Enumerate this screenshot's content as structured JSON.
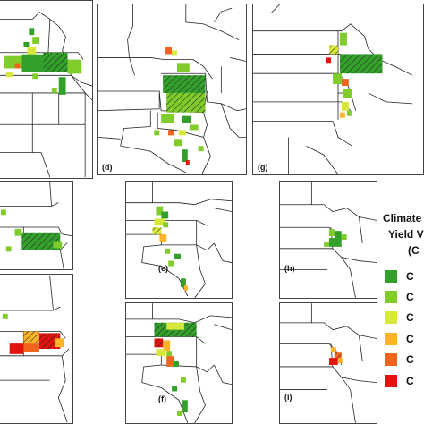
{
  "panels": {
    "d": "(d)",
    "g": "(g)",
    "e": "(e)",
    "h": "(h)",
    "f": "(f)",
    "i": "(i)"
  },
  "legend": {
    "title_line1": "Climate",
    "title_line2": "Yield V",
    "title_line3": "(C",
    "items": [
      {
        "label": "C",
        "color": "#33a02c"
      },
      {
        "label": "C",
        "color": "#7fcc2a"
      },
      {
        "label": "C",
        "color": "#d7e83a"
      },
      {
        "label": "C",
        "color": "#fdb42a"
      },
      {
        "label": "C",
        "color": "#f0641e"
      },
      {
        "label": "C",
        "color": "#e3140f"
      }
    ]
  },
  "colors": {
    "dark_green": "#33a02c",
    "light_green": "#7fcc2a",
    "yellow_green": "#d7e83a",
    "orange": "#fdb42a",
    "dark_orange": "#f0641e",
    "red": "#e3140f",
    "border": "#444444"
  }
}
